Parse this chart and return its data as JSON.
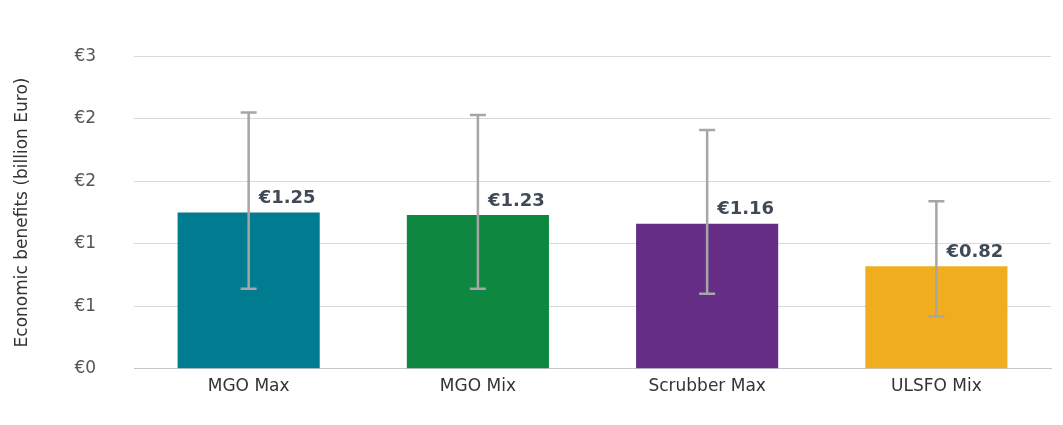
{
  "chart_data": {
    "type": "bar",
    "ylabel": "Economic benefits (billion Euro)",
    "categories": [
      "MGO Max",
      "MGO Mix",
      "Scrubber Max",
      "ULSFO Mix"
    ],
    "values": [
      1.25,
      1.23,
      1.16,
      0.82
    ],
    "colors": [
      "#007b8f",
      "#0e8741",
      "#662d87",
      "#f0ae1e"
    ],
    "errors": [
      [
        0.64,
        2.05
      ],
      [
        0.64,
        2.03
      ],
      [
        0.6,
        1.91
      ],
      [
        0.42,
        1.34
      ]
    ],
    "value_labels": [
      "€1.25",
      "€1.23",
      "€1.16",
      "€0.82"
    ],
    "ylim": [
      0,
      2.5
    ],
    "yticks": [
      {
        "value": 0,
        "label": "€0"
      },
      {
        "value": 0.5,
        "label": "€1"
      },
      {
        "value": 1,
        "label": "€1"
      },
      {
        "value": 1.5,
        "label": "€2"
      },
      {
        "value": 2,
        "label": "€2"
      },
      {
        "value": 2.5,
        "label": "€3"
      }
    ],
    "grid": "y",
    "legend": false
  }
}
